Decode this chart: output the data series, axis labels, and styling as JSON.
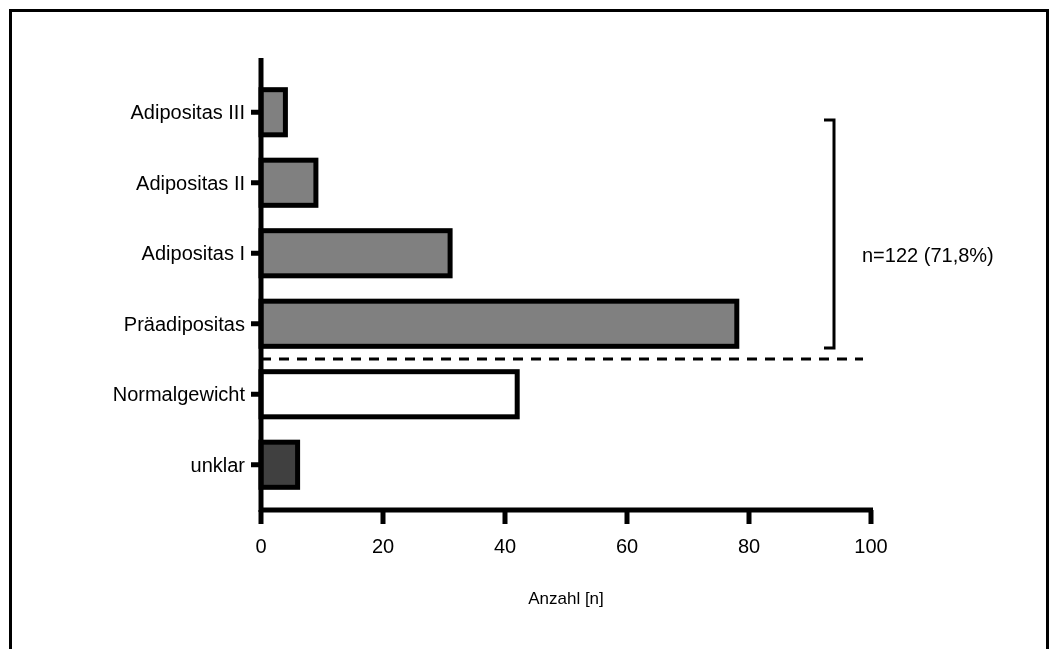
{
  "chart_data": {
    "type": "bar",
    "orientation": "horizontal",
    "categories": [
      "Adipositas III",
      "Adipositas II",
      "Adipositas I",
      "Präadipositas",
      "Normalgewicht",
      "unklar"
    ],
    "values": [
      4,
      9,
      31,
      78,
      42,
      6
    ],
    "colors": [
      "#808080",
      "#808080",
      "#808080",
      "#808080",
      "#ffffff",
      "#404040"
    ],
    "xlim": [
      0,
      100
    ],
    "xticks": [
      0,
      20,
      40,
      60,
      80,
      100
    ],
    "xlabel": "Anzahl [n]",
    "annotations": [
      "n=122 (71,8%)"
    ],
    "grid": false
  }
}
